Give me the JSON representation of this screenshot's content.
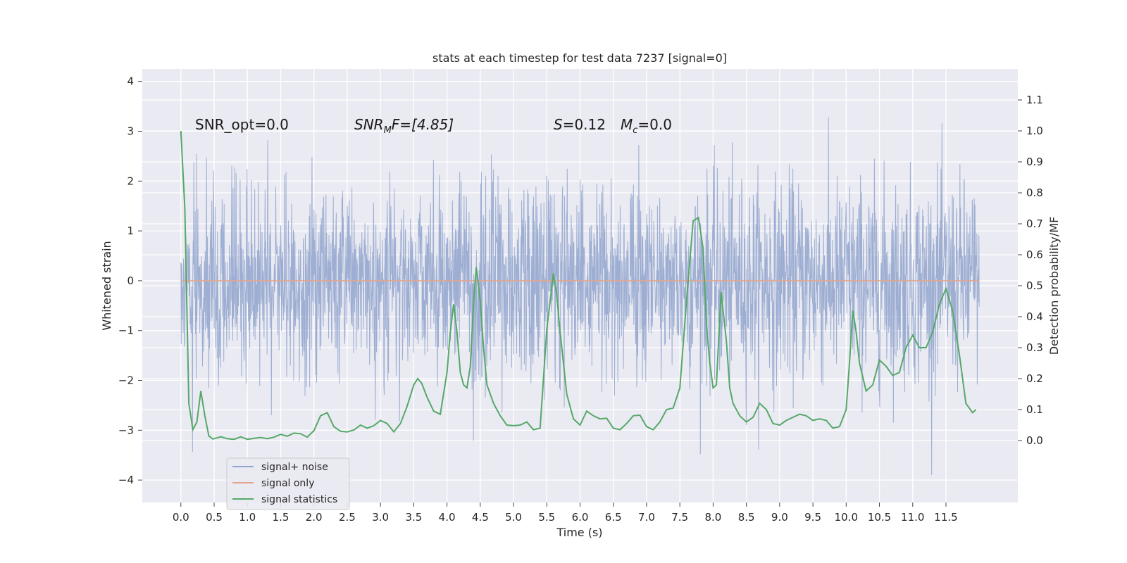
{
  "chart_data": {
    "type": "line",
    "title": "stats at each timestep for test data 7237 [signal=0]",
    "xlabel": "Time (s)",
    "ylabel": "Whitened strain",
    "ylabel_right": "Detection probability/MF",
    "xlim": [
      -0.58,
      12.58
    ],
    "ylim": [
      -4.45,
      4.25
    ],
    "ylim_right": [
      -0.2,
      1.2
    ],
    "x_ticks": [
      0.0,
      0.5,
      1.0,
      1.5,
      2.0,
      2.5,
      3.0,
      3.5,
      4.0,
      4.5,
      5.0,
      5.5,
      6.0,
      6.5,
      7.0,
      7.5,
      8.0,
      8.5,
      9.0,
      9.5,
      10.0,
      10.5,
      11.0,
      11.5
    ],
    "x_tick_labels": [
      "0.0",
      "0.5",
      "1.0",
      "1.5",
      "2.0",
      "2.5",
      "3.0",
      "3.5",
      "4.0",
      "4.5",
      "5.0",
      "5.5",
      "6.0",
      "6.5",
      "7.0",
      "7.5",
      "8.0",
      "8.5",
      "9.0",
      "9.5",
      "10.0",
      "10.5",
      "11.0",
      "11.5"
    ],
    "y_ticks": [
      -4,
      -3,
      -2,
      -1,
      0,
      1,
      2,
      3,
      4
    ],
    "y_tick_labels": [
      "−4",
      "−3",
      "−2",
      "−1",
      "0",
      "1",
      "2",
      "3",
      "4"
    ],
    "y_right_ticks": [
      0.0,
      0.1,
      0.2,
      0.3,
      0.4,
      0.5,
      0.6,
      0.7,
      0.8,
      0.9,
      1.0,
      1.1
    ],
    "y_right_tick_labels": [
      "0.0",
      "0.1",
      "0.2",
      "0.3",
      "0.4",
      "0.5",
      "0.6",
      "0.7",
      "0.8",
      "0.9",
      "1.0",
      "1.1"
    ],
    "grid": true,
    "legend_position": "lower-left",
    "annotations": {
      "snr_opt": "SNR_opt=0.0",
      "snr_mf_prefix": "SNR",
      "snr_mf_sub": "M",
      "snr_mf_suffix": "F=[4.85]",
      "s_symbol": "S",
      "s_value": "=0.12",
      "mc_symbol": "M",
      "mc_sub": "c",
      "mc_value": "=0.0"
    },
    "series": [
      {
        "name": "signal+ noise",
        "color": "#8fa3cc",
        "axis": "left",
        "description": "whitened noise, approx. standard normal, 12 s",
        "x_range": [
          0.0,
          12.0
        ],
        "envelope_sigma": 1.0
      },
      {
        "name": "signal only",
        "color": "#e5a58a",
        "axis": "left",
        "x": [
          0.0,
          12.0
        ],
        "values": [
          0.0,
          0.0
        ]
      },
      {
        "name": "signal statistics",
        "color": "#55a868",
        "axis": "right",
        "x": [
          0.0,
          0.06,
          0.12,
          0.18,
          0.24,
          0.3,
          0.36,
          0.42,
          0.48,
          0.6,
          0.7,
          0.8,
          0.9,
          1.0,
          1.1,
          1.2,
          1.3,
          1.4,
          1.5,
          1.6,
          1.7,
          1.8,
          1.9,
          2.0,
          2.1,
          2.2,
          2.3,
          2.4,
          2.5,
          2.6,
          2.7,
          2.8,
          2.9,
          3.0,
          3.1,
          3.2,
          3.3,
          3.4,
          3.5,
          3.56,
          3.62,
          3.7,
          3.8,
          3.9,
          4.0,
          4.05,
          4.1,
          4.15,
          4.2,
          4.25,
          4.3,
          4.35,
          4.4,
          4.44,
          4.5,
          4.55,
          4.6,
          4.7,
          4.8,
          4.9,
          5.0,
          5.1,
          5.2,
          5.3,
          5.4,
          5.5,
          5.55,
          5.6,
          5.65,
          5.7,
          5.8,
          5.9,
          6.0,
          6.1,
          6.2,
          6.3,
          6.4,
          6.5,
          6.6,
          6.7,
          6.8,
          6.9,
          7.0,
          7.1,
          7.2,
          7.3,
          7.4,
          7.5,
          7.6,
          7.7,
          7.78,
          7.85,
          7.9,
          7.95,
          8.0,
          8.05,
          8.12,
          8.2,
          8.25,
          8.3,
          8.4,
          8.5,
          8.6,
          8.7,
          8.8,
          8.9,
          9.0,
          9.1,
          9.2,
          9.3,
          9.4,
          9.5,
          9.6,
          9.7,
          9.8,
          9.9,
          10.0,
          10.05,
          10.1,
          10.15,
          10.2,
          10.3,
          10.4,
          10.5,
          10.6,
          10.7,
          10.8,
          10.9,
          11.0,
          11.1,
          11.2,
          11.3,
          11.4,
          11.5,
          11.6,
          11.7,
          11.8,
          11.9,
          11.95
        ],
        "values": [
          1.0,
          0.75,
          0.12,
          0.035,
          0.06,
          0.16,
          0.08,
          0.015,
          0.005,
          0.012,
          0.006,
          0.004,
          0.012,
          0.004,
          0.007,
          0.01,
          0.006,
          0.011,
          0.02,
          0.014,
          0.024,
          0.022,
          0.011,
          0.032,
          0.08,
          0.09,
          0.045,
          0.03,
          0.028,
          0.034,
          0.05,
          0.04,
          0.048,
          0.065,
          0.055,
          0.028,
          0.055,
          0.11,
          0.18,
          0.2,
          0.185,
          0.14,
          0.095,
          0.085,
          0.22,
          0.35,
          0.44,
          0.35,
          0.22,
          0.18,
          0.17,
          0.24,
          0.45,
          0.56,
          0.45,
          0.3,
          0.18,
          0.12,
          0.08,
          0.05,
          0.048,
          0.05,
          0.06,
          0.035,
          0.04,
          0.36,
          0.45,
          0.54,
          0.47,
          0.35,
          0.15,
          0.07,
          0.05,
          0.095,
          0.08,
          0.07,
          0.072,
          0.04,
          0.035,
          0.055,
          0.08,
          0.082,
          0.045,
          0.035,
          0.06,
          0.1,
          0.105,
          0.17,
          0.45,
          0.71,
          0.72,
          0.62,
          0.37,
          0.25,
          0.17,
          0.18,
          0.48,
          0.32,
          0.17,
          0.12,
          0.08,
          0.06,
          0.075,
          0.12,
          0.1,
          0.055,
          0.05,
          0.065,
          0.075,
          0.085,
          0.08,
          0.065,
          0.07,
          0.065,
          0.04,
          0.045,
          0.1,
          0.25,
          0.42,
          0.35,
          0.25,
          0.16,
          0.18,
          0.26,
          0.24,
          0.21,
          0.22,
          0.3,
          0.34,
          0.3,
          0.3,
          0.35,
          0.44,
          0.49,
          0.42,
          0.28,
          0.12,
          0.09,
          0.1
        ]
      }
    ]
  }
}
